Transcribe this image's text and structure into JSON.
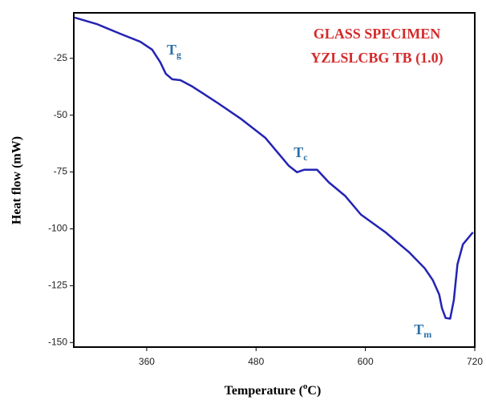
{
  "chart_data": {
    "type": "line",
    "legend_lines": [
      "GLASS SPECIMEN",
      "YZLSLCBG TB (1.0)"
    ],
    "x_label": [
      "Temperature (",
      "o",
      "C)"
    ],
    "y_label": "Heat flow (mW)",
    "xlim": [
      280,
      720
    ],
    "ylim": [
      -152,
      -5
    ],
    "xticks": [
      360,
      480,
      600,
      720
    ],
    "yticks": [
      -25,
      -50,
      -75,
      -100,
      -125,
      -150
    ],
    "series": [
      {
        "color": "#2323b4",
        "x": [
          281,
          305,
          331,
          353,
          366,
          375,
          381,
          388,
          397,
          410,
          437,
          463,
          490,
          507,
          516,
          525,
          533,
          547,
          560,
          578,
          595,
          622,
          648,
          665,
          674,
          681,
          684,
          688,
          693,
          697,
          701,
          707,
          718
        ],
        "values": [
          -7.1,
          -9.9,
          -14.2,
          -17.7,
          -21.2,
          -26.8,
          -31.8,
          -34.2,
          -34.6,
          -37.4,
          -44.4,
          -51.5,
          -59.9,
          -68.0,
          -72.3,
          -75.1,
          -74.0,
          -74.0,
          -79.6,
          -85.6,
          -93.7,
          -101.5,
          -110.3,
          -117.3,
          -122.6,
          -128.9,
          -134.9,
          -139.2,
          -139.5,
          -131.4,
          -115.6,
          -106.8,
          -101.5
        ]
      }
    ],
    "annotations": [
      {
        "main": "T",
        "sub": "g",
        "x": 390,
        "y": -22
      },
      {
        "main": "T",
        "sub": "c",
        "x": 529,
        "y": -67
      },
      {
        "main": "T",
        "sub": "m",
        "x": 663,
        "y": -145
      }
    ]
  }
}
